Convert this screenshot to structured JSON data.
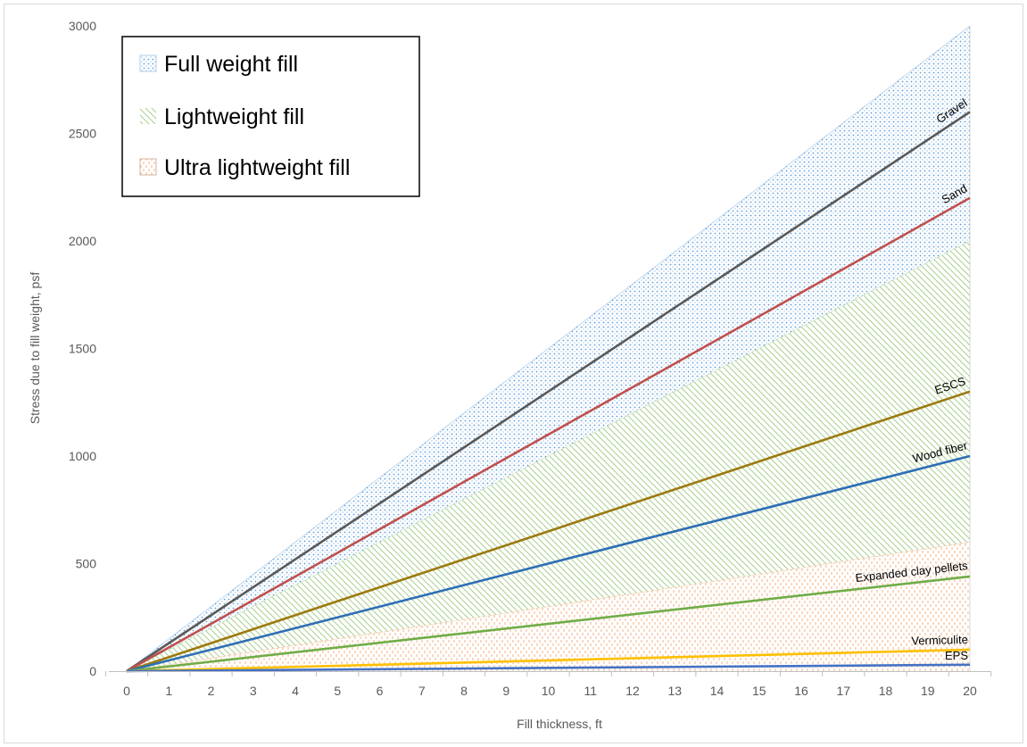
{
  "chart_data": {
    "type": "area",
    "title": "",
    "xlabel": "Fill thickness, ft",
    "ylabel": "Stress due to fill weight, psf",
    "xlim": [
      0,
      20
    ],
    "ylim": [
      0,
      3000
    ],
    "x_ticks": [
      "0",
      "1",
      "2",
      "3",
      "4",
      "5",
      "6",
      "7",
      "8",
      "9",
      "10",
      "11",
      "12",
      "13",
      "14",
      "15",
      "16",
      "17",
      "18",
      "19",
      "20"
    ],
    "y_ticks": [
      "0",
      "500",
      "1000",
      "1500",
      "2000",
      "2500",
      "3000"
    ],
    "grid": false,
    "legend_position": "top-left",
    "bands": [
      {
        "name": "Full weight fill",
        "lower": 2000,
        "upper": 3000,
        "color": "#5b9bd5",
        "pattern": "dots"
      },
      {
        "name": "Lightweight fill",
        "lower": 600,
        "upper": 2000,
        "color": "#a9d08e",
        "pattern": "diagonal"
      },
      {
        "name": "Ultra lightweight fill",
        "lower": 0,
        "upper": 600,
        "color": "#f4b183",
        "pattern": "dashes"
      }
    ],
    "series": [
      {
        "name": "Gravel",
        "x": [
          0,
          20
        ],
        "y": [
          0,
          2600
        ],
        "color": "#595959"
      },
      {
        "name": "Sand",
        "x": [
          0,
          20
        ],
        "y": [
          0,
          2200
        ],
        "color": "#c0504d"
      },
      {
        "name": "ESCS",
        "x": [
          0,
          20
        ],
        "y": [
          0,
          1300
        ],
        "color": "#9c7a0f"
      },
      {
        "name": "Wood fiber",
        "x": [
          0,
          20
        ],
        "y": [
          0,
          1000
        ],
        "color": "#2e6eb5"
      },
      {
        "name": "Expanded clay pellets",
        "x": [
          0,
          20
        ],
        "y": [
          0,
          440
        ],
        "color": "#70ad47"
      },
      {
        "name": "Vermiculite",
        "x": [
          0,
          20
        ],
        "y": [
          0,
          100
        ],
        "color": "#ffc000"
      },
      {
        "name": "EPS",
        "x": [
          0,
          20
        ],
        "y": [
          0,
          30
        ],
        "color": "#4472c4"
      }
    ]
  }
}
